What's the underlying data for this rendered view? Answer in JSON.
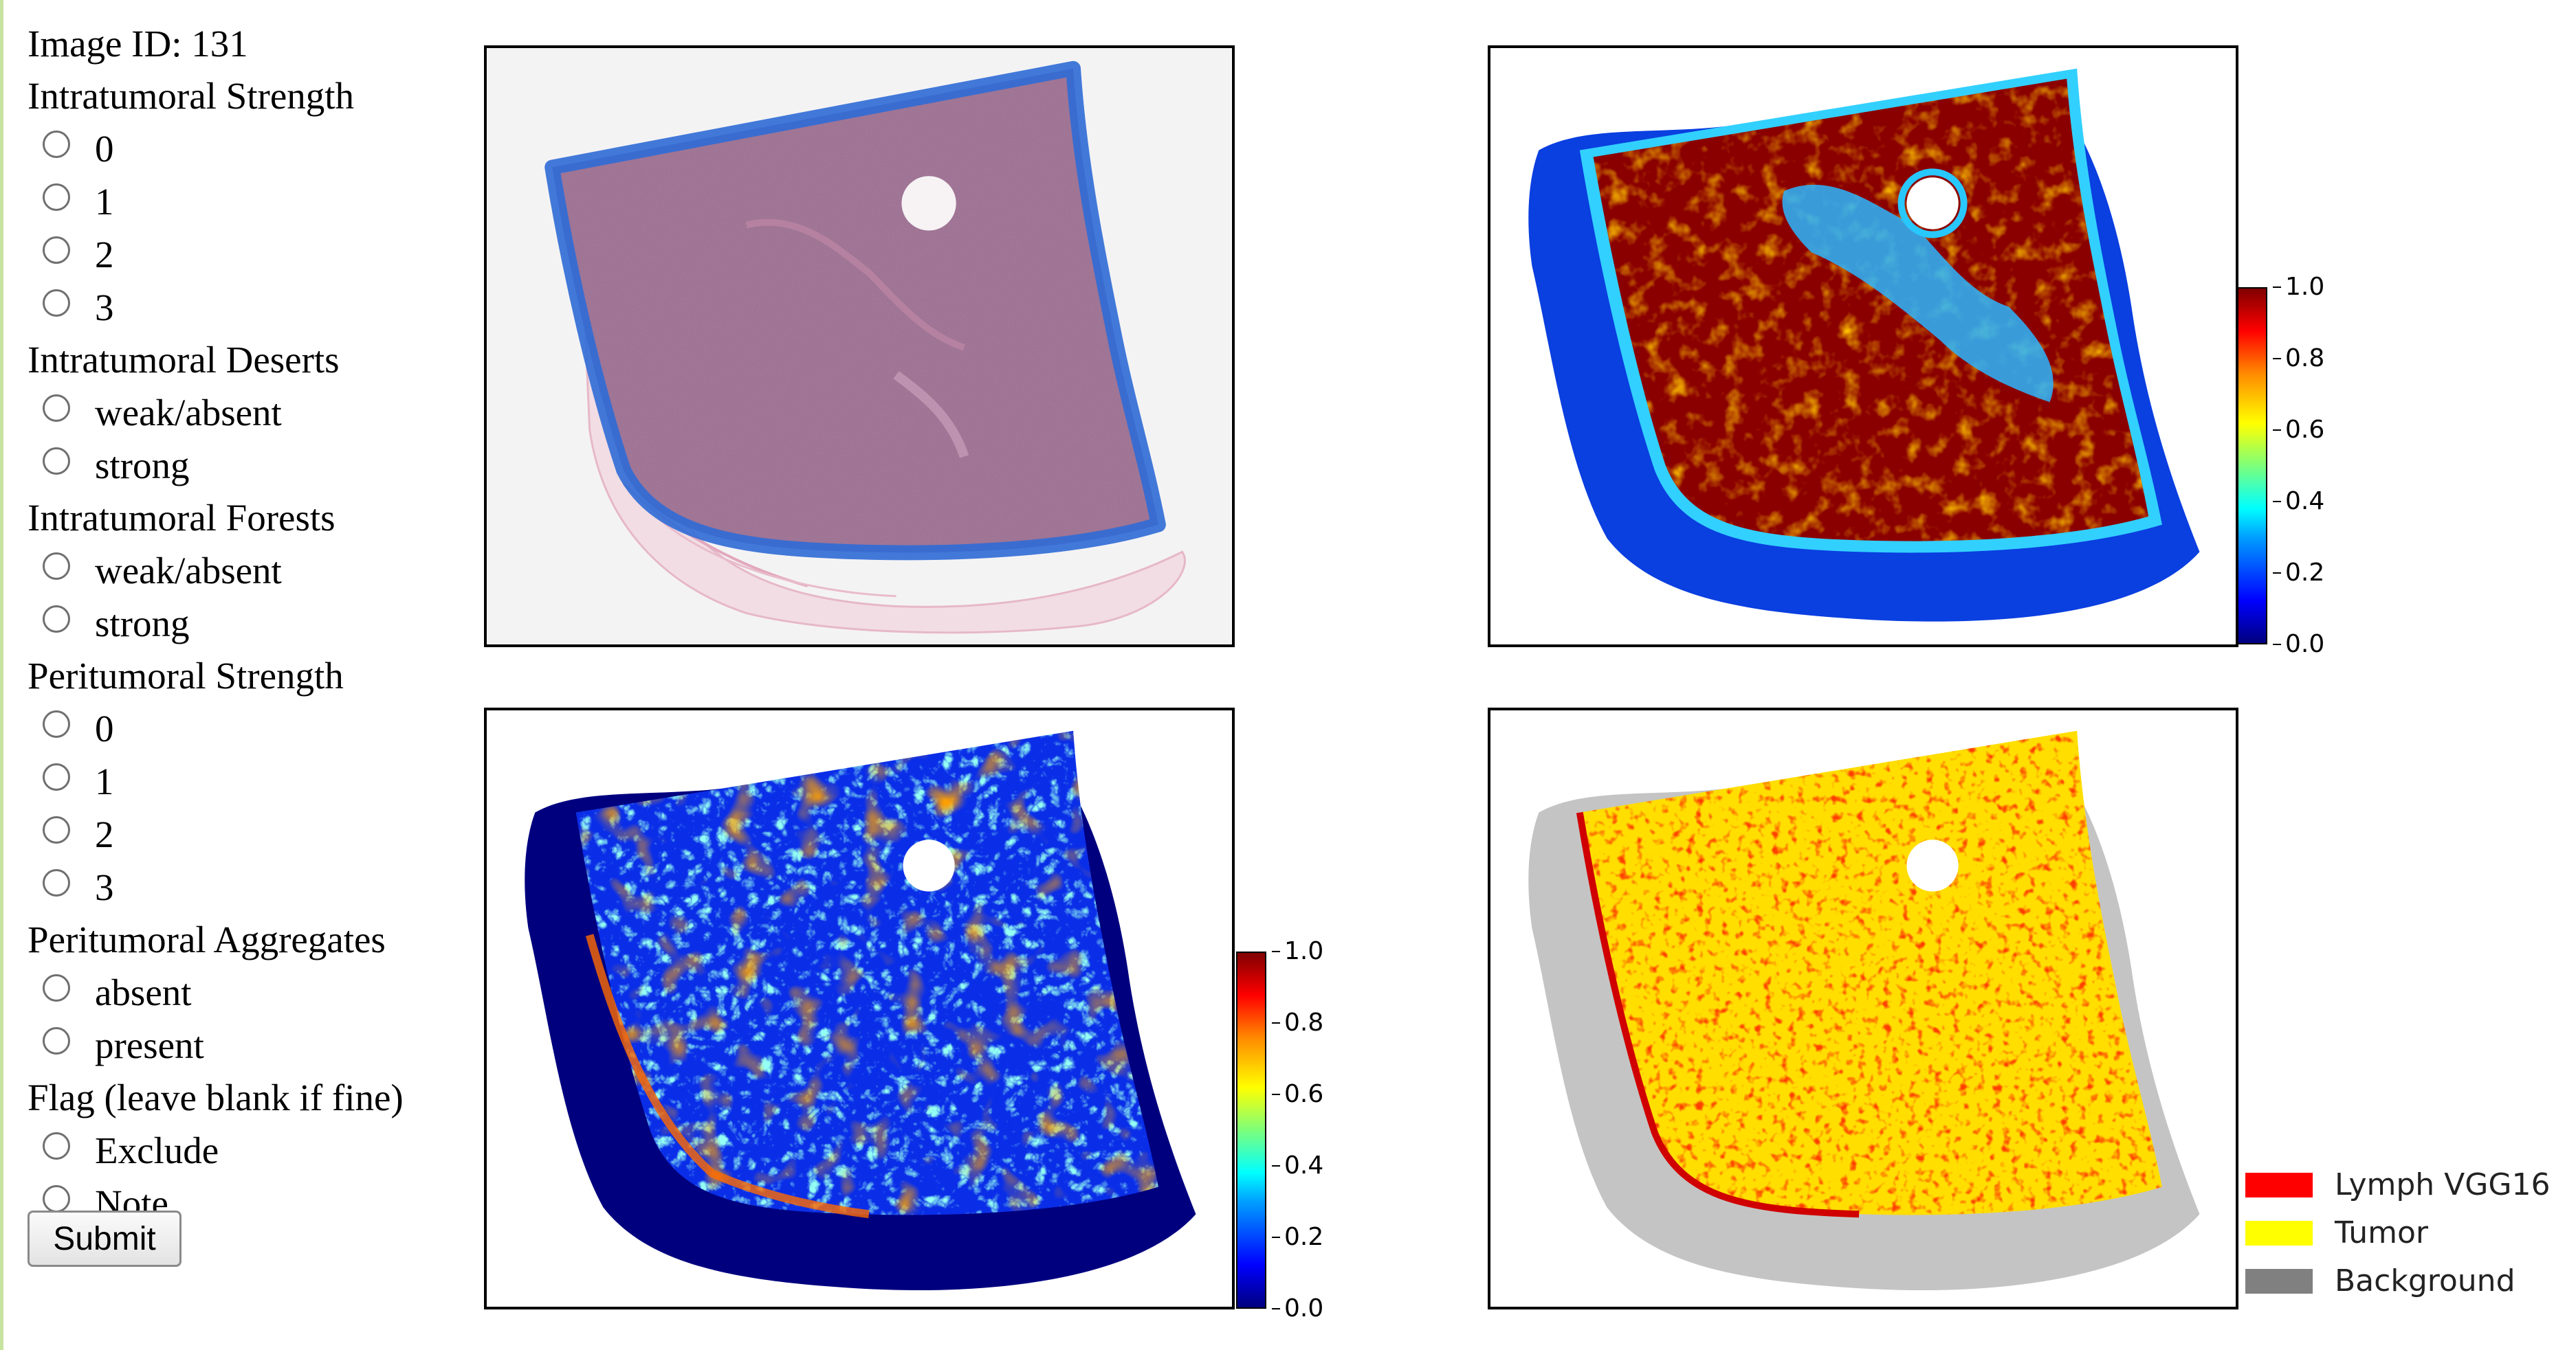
{
  "form": {
    "image_id": "Image ID: 131",
    "sections": [
      {
        "title": "Intratumoral Strength",
        "options": [
          "0",
          "1",
          "2",
          "3"
        ]
      },
      {
        "title": "Intratumoral Deserts",
        "options": [
          "weak/absent",
          "strong"
        ]
      },
      {
        "title": "Intratumoral Forests",
        "options": [
          "weak/absent",
          "strong"
        ]
      },
      {
        "title": "Peritumoral Strength",
        "options": [
          "0",
          "1",
          "2",
          "3"
        ]
      },
      {
        "title": "Peritumoral Aggregates",
        "options": [
          "absent",
          "present"
        ]
      },
      {
        "title": "Flag (leave blank if fine)",
        "options": [
          "Exclude",
          "Note"
        ]
      }
    ],
    "submit_label": "Submit"
  },
  "colorbar_top": {
    "ticks": [
      "1.0",
      "0.8",
      "0.6",
      "0.4",
      "0.2",
      "0.0"
    ]
  },
  "colorbar_bottom": {
    "ticks": [
      "1.0",
      "0.8",
      "0.6",
      "0.4",
      "0.2",
      "0.0"
    ]
  },
  "legend": {
    "items": [
      {
        "label": "Lymph VGG16",
        "color": "#ff0000"
      },
      {
        "label": "Tumor",
        "color": "#ffff00"
      },
      {
        "label": "Background",
        "color": "#808080"
      }
    ]
  },
  "panels": {
    "top_left": "H&E slide with blue annotation outline",
    "top_right": "tumor probability heatmap",
    "bottom_left": "lymphocyte probability heatmap",
    "bottom_right": "segmentation map"
  },
  "colors": {
    "annotation_outline": "#2f6bd6",
    "tissue": "#9c6b90"
  }
}
